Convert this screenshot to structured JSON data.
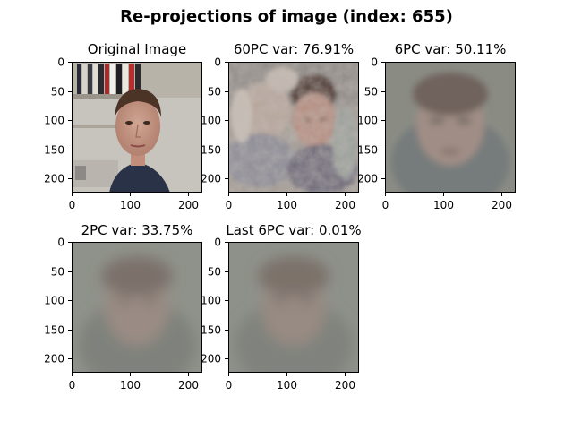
{
  "figure": {
    "suptitle": "Re-projections of image (index: 655)"
  },
  "chart_data": [
    {
      "type": "image",
      "title": "Original Image",
      "content": "original color photo of a man's face",
      "xticks": [
        "0",
        "100",
        "200"
      ],
      "yticks": [
        "0",
        "50",
        "100",
        "150",
        "200"
      ],
      "xlim": [
        0,
        224
      ],
      "ylim": [
        224,
        0
      ]
    },
    {
      "type": "image",
      "title": "60PC var: 76.91%",
      "content": "reconstruction from 60 principal components",
      "xticks": [
        "0",
        "100",
        "200"
      ],
      "yticks": [
        "0",
        "50",
        "100",
        "150",
        "200"
      ],
      "xlim": [
        0,
        224
      ],
      "ylim": [
        224,
        0
      ]
    },
    {
      "type": "image",
      "title": "6PC var: 50.11%",
      "content": "reconstruction from 6 principal components",
      "xticks": [
        "0",
        "100",
        "200"
      ],
      "yticks": [
        "0",
        "50",
        "100",
        "150",
        "200"
      ],
      "xlim": [
        0,
        224
      ],
      "ylim": [
        224,
        0
      ]
    },
    {
      "type": "image",
      "title": "2PC var: 33.75%",
      "content": "reconstruction from 2 principal components",
      "xticks": [
        "0",
        "100",
        "200"
      ],
      "yticks": [
        "0",
        "50",
        "100",
        "150",
        "200"
      ],
      "xlim": [
        0,
        224
      ],
      "ylim": [
        224,
        0
      ]
    },
    {
      "type": "image",
      "title": "Last 6PC var: 0.01%",
      "content": "reconstruction from last 6 principal components",
      "xticks": [
        "0",
        "100",
        "200"
      ],
      "yticks": [
        "0",
        "50",
        "100",
        "150",
        "200"
      ],
      "xlim": [
        0,
        224
      ],
      "ylim": [
        224,
        0
      ]
    }
  ]
}
